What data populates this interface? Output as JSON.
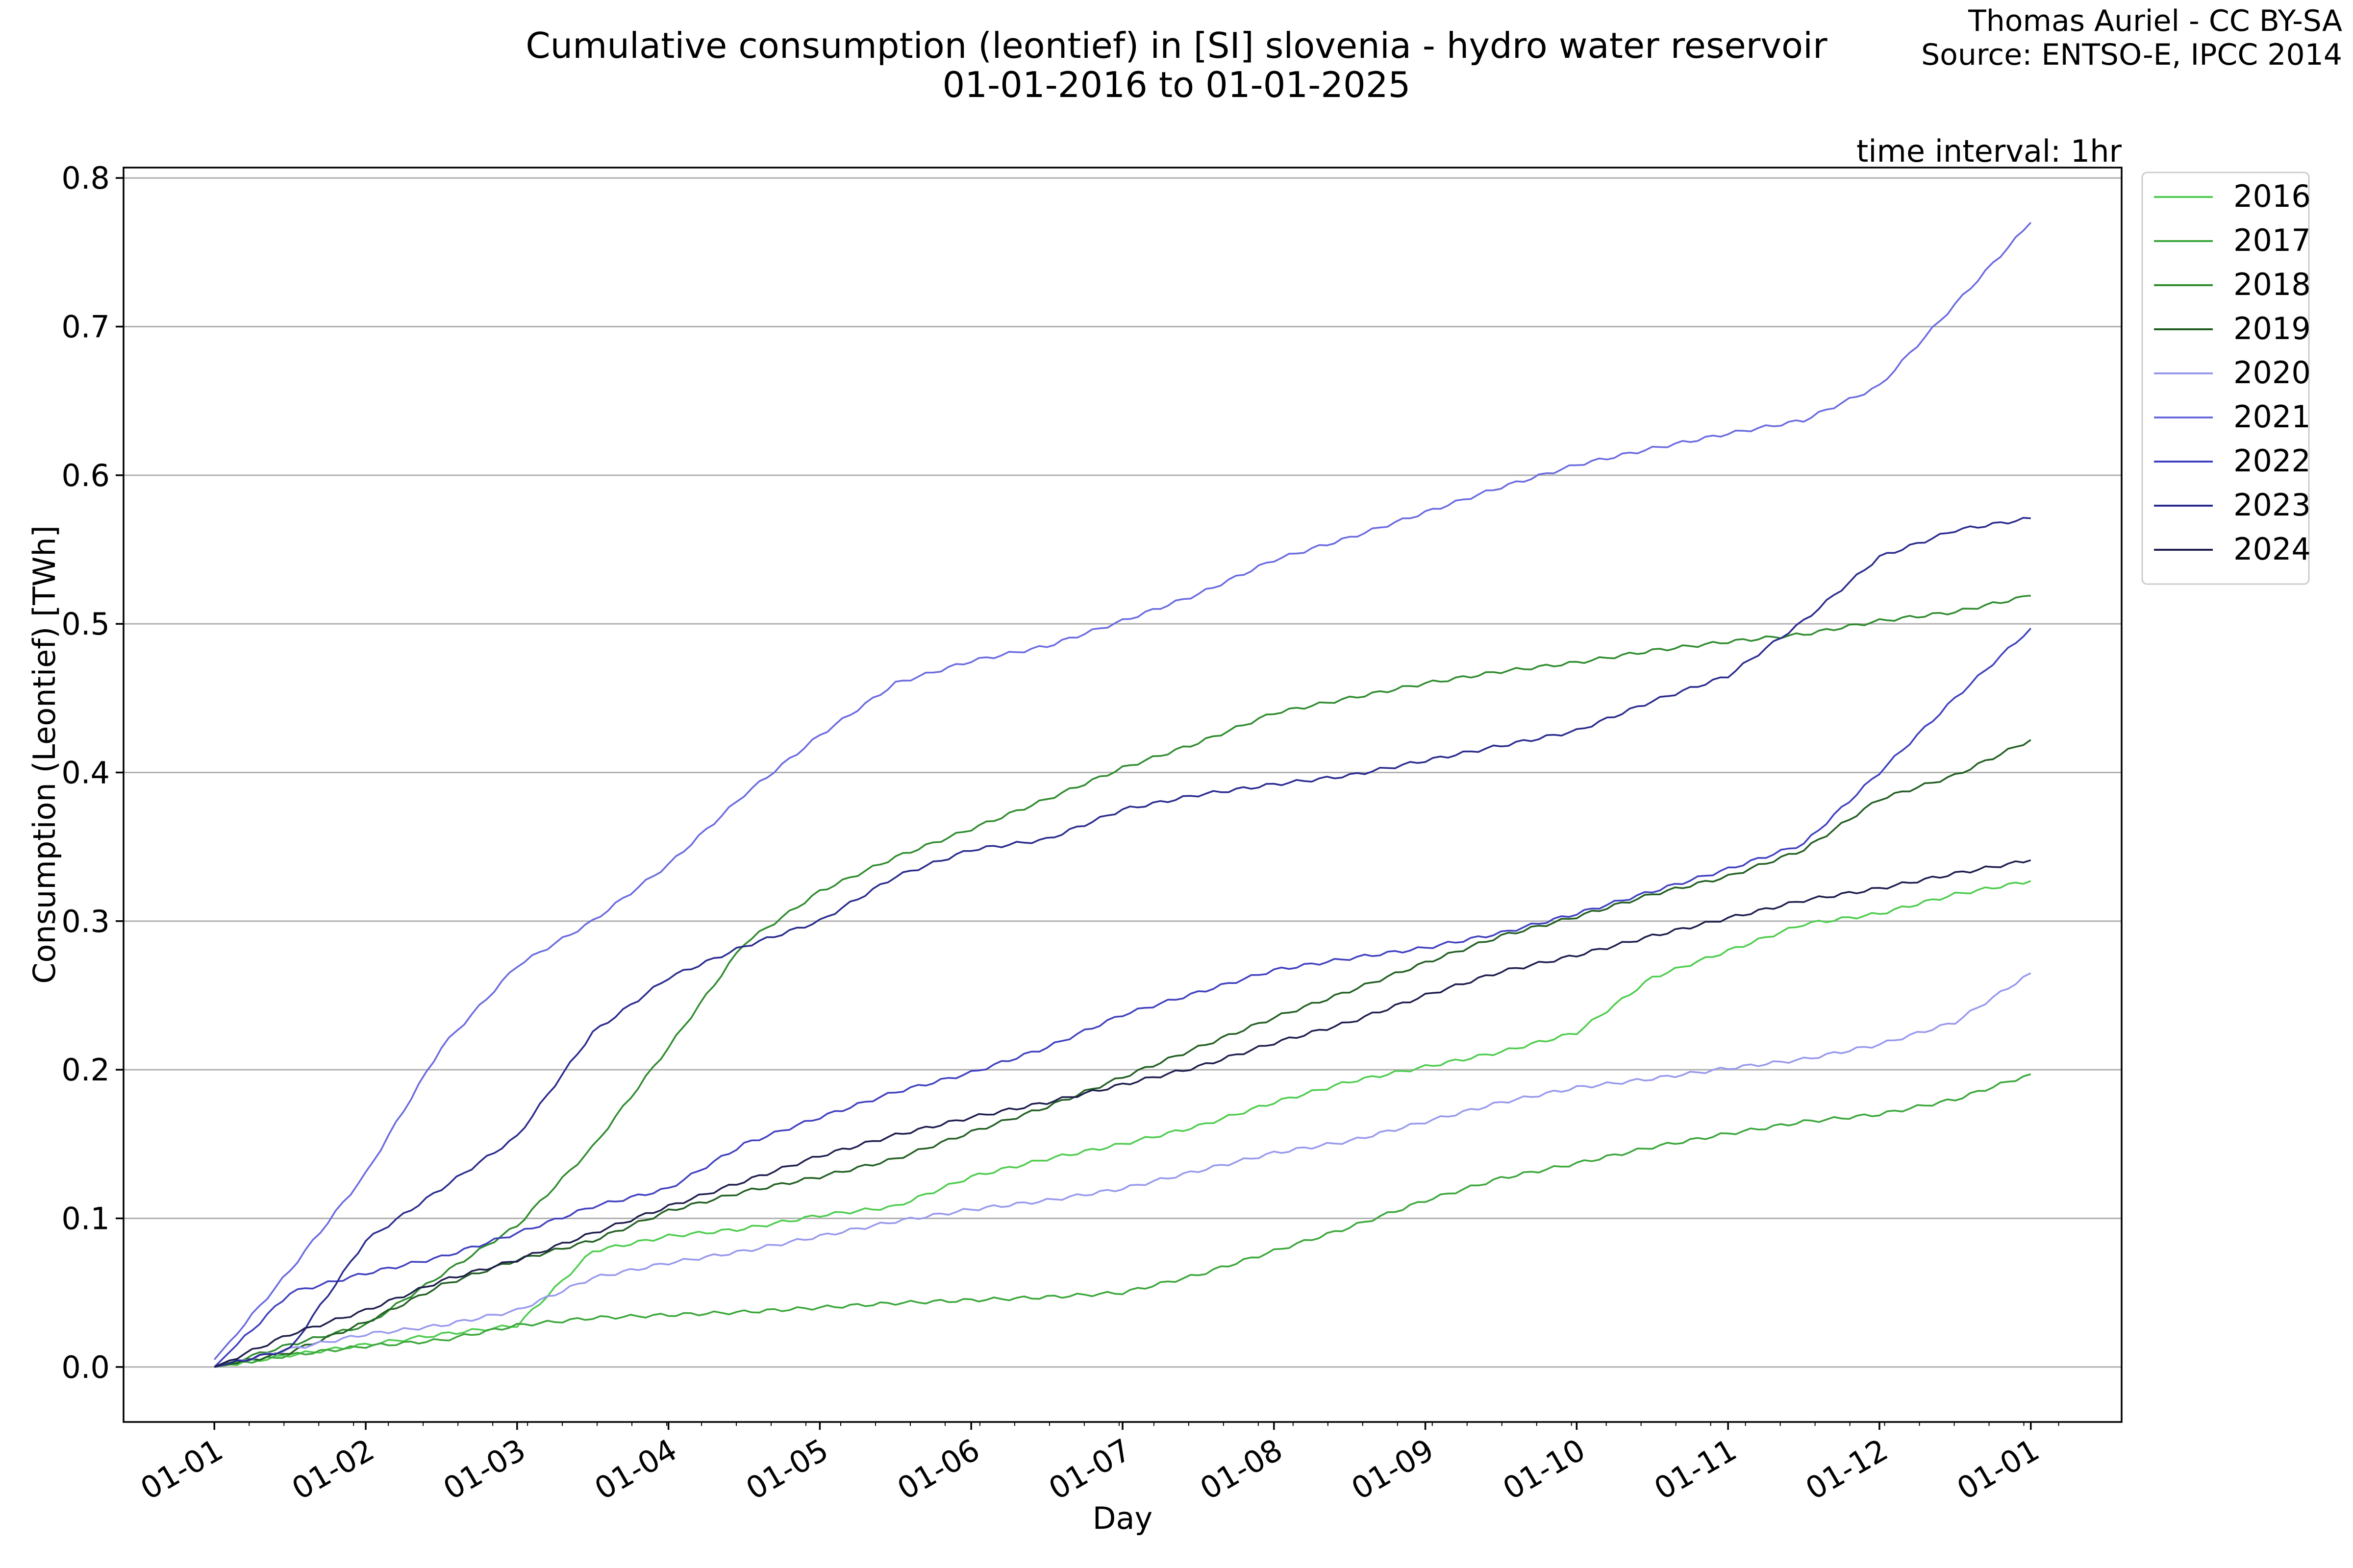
{
  "chart_data": {
    "type": "line",
    "title": "Cumulative consumption (leontief) in [SI] slovenia - hydro water reservoir",
    "subtitle": "01-01-2016 to 01-01-2025",
    "credit": [
      "Thomas Auriel - CC BY-SA",
      "Source: ENTSO-E, IPCC 2014"
    ],
    "annotation": "time interval: 1hr",
    "xlabel": "Day",
    "ylabel": "Consumption (Leontief) [TWh]",
    "x_tick_labels": [
      "01-01",
      "01-02",
      "01-03",
      "01-04",
      "01-05",
      "01-06",
      "01-07",
      "01-08",
      "01-09",
      "01-10",
      "01-11",
      "01-12",
      "01-01"
    ],
    "y_tick_labels": [
      "0.0",
      "0.1",
      "0.2",
      "0.3",
      "0.4",
      "0.5",
      "0.6",
      "0.7",
      "0.8"
    ],
    "ylim": [
      -0.037,
      0.807
    ],
    "xlim_months": [
      -0.6,
      12.6
    ],
    "grid": "horizontal",
    "legend_position": "outside-right-top",
    "x": [
      "01-01",
      "15-01",
      "01-02",
      "15-02",
      "01-03",
      "15-03",
      "01-04",
      "15-04",
      "01-05",
      "15-05",
      "01-06",
      "15-06",
      "01-07",
      "15-07",
      "01-08",
      "15-08",
      "01-09",
      "15-09",
      "01-10",
      "15-10",
      "01-11",
      "15-11",
      "01-12",
      "15-12",
      "01-01"
    ],
    "series": [
      {
        "name": "2016",
        "color": "#4ecc4e",
        "values": [
          0.0,
          0.008,
          0.015,
          0.022,
          0.028,
          0.078,
          0.088,
          0.093,
          0.102,
          0.108,
          0.128,
          0.14,
          0.15,
          0.162,
          0.178,
          0.192,
          0.202,
          0.212,
          0.225,
          0.262,
          0.28,
          0.298,
          0.305,
          0.318,
          0.327
        ]
      },
      {
        "name": "2017",
        "color": "#3aa63a",
        "values": [
          0.0,
          0.008,
          0.014,
          0.018,
          0.028,
          0.033,
          0.035,
          0.037,
          0.04,
          0.043,
          0.045,
          0.047,
          0.05,
          0.062,
          0.078,
          0.094,
          0.112,
          0.127,
          0.137,
          0.148,
          0.157,
          0.165,
          0.17,
          0.18,
          0.197
        ]
      },
      {
        "name": "2018",
        "color": "#2e8b2e",
        "values": [
          0.0,
          0.015,
          0.028,
          0.062,
          0.095,
          0.148,
          0.215,
          0.285,
          0.32,
          0.343,
          0.362,
          0.382,
          0.403,
          0.42,
          0.44,
          0.45,
          0.46,
          0.468,
          0.474,
          0.482,
          0.488,
          0.493,
          0.502,
          0.508,
          0.519
        ]
      },
      {
        "name": "2019",
        "color": "#225f22",
        "values": [
          0.0,
          0.01,
          0.03,
          0.055,
          0.072,
          0.085,
          0.105,
          0.118,
          0.128,
          0.14,
          0.158,
          0.175,
          0.195,
          0.215,
          0.235,
          0.253,
          0.272,
          0.29,
          0.303,
          0.318,
          0.33,
          0.348,
          0.382,
          0.398,
          0.422
        ]
      },
      {
        "name": "2020",
        "color": "#9898ee",
        "values": [
          0.0,
          0.012,
          0.022,
          0.028,
          0.038,
          0.06,
          0.07,
          0.078,
          0.088,
          0.098,
          0.106,
          0.112,
          0.12,
          0.132,
          0.144,
          0.152,
          0.165,
          0.178,
          0.188,
          0.194,
          0.201,
          0.207,
          0.217,
          0.232,
          0.265
        ]
      },
      {
        "name": "2021",
        "color": "#6a6ae0",
        "values": [
          0.005,
          0.065,
          0.13,
          0.215,
          0.27,
          0.3,
          0.338,
          0.385,
          0.425,
          0.46,
          0.475,
          0.485,
          0.502,
          0.52,
          0.543,
          0.558,
          0.575,
          0.592,
          0.607,
          0.618,
          0.628,
          0.637,
          0.66,
          0.715,
          0.77
        ]
      },
      {
        "name": "2022",
        "color": "#4040c0",
        "values": [
          0.0,
          0.05,
          0.063,
          0.074,
          0.09,
          0.108,
          0.12,
          0.15,
          0.168,
          0.185,
          0.198,
          0.215,
          0.237,
          0.252,
          0.267,
          0.275,
          0.282,
          0.292,
          0.305,
          0.32,
          0.335,
          0.352,
          0.4,
          0.45,
          0.497
        ]
      },
      {
        "name": "2023",
        "color": "#2a2a8e",
        "values": [
          0.0,
          0.012,
          0.085,
          0.12,
          0.155,
          0.225,
          0.262,
          0.283,
          0.3,
          0.33,
          0.348,
          0.355,
          0.375,
          0.385,
          0.392,
          0.398,
          0.408,
          0.418,
          0.428,
          0.448,
          0.465,
          0.502,
          0.545,
          0.563,
          0.571
        ]
      },
      {
        "name": "2024",
        "color": "#1d1d4d",
        "values": [
          0.0,
          0.022,
          0.038,
          0.058,
          0.072,
          0.09,
          0.108,
          0.125,
          0.142,
          0.156,
          0.168,
          0.178,
          0.19,
          0.202,
          0.218,
          0.232,
          0.25,
          0.266,
          0.277,
          0.29,
          0.302,
          0.314,
          0.322,
          0.332,
          0.341
        ]
      }
    ]
  }
}
